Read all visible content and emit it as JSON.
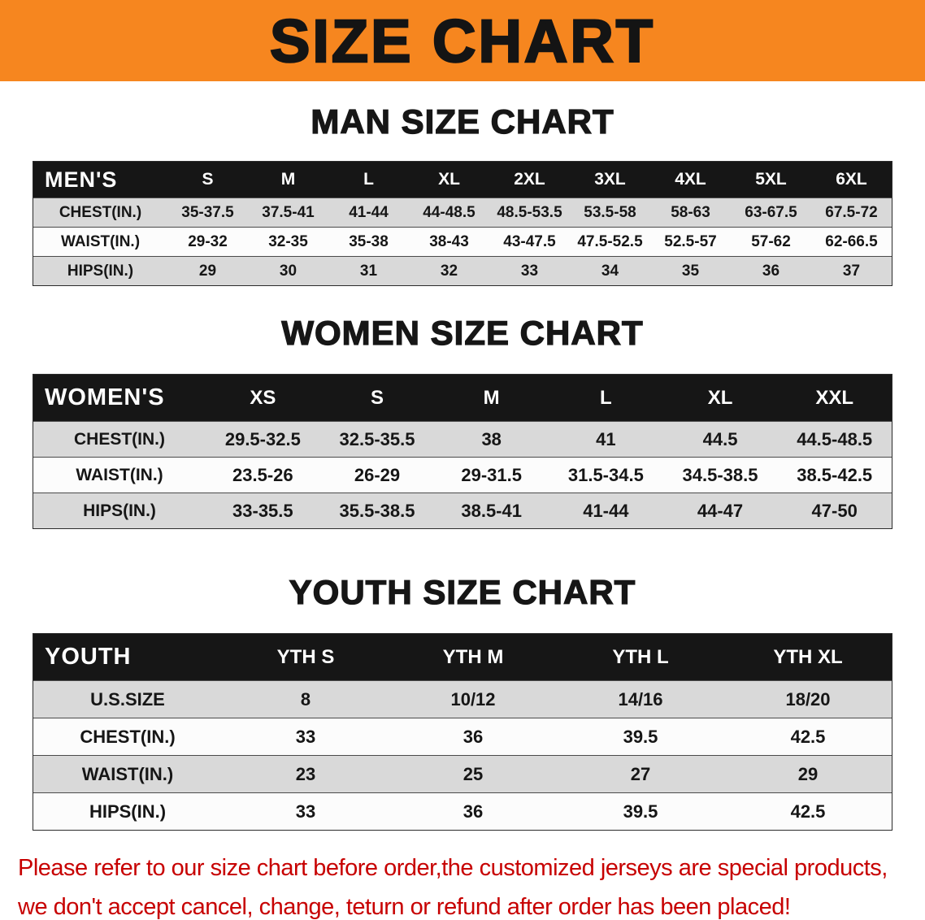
{
  "banner": {
    "title": "SIZE CHART"
  },
  "men": {
    "heading": "MAN SIZE CHART",
    "label": "MEN'S",
    "columns": [
      "S",
      "M",
      "L",
      "XL",
      "2XL",
      "3XL",
      "4XL",
      "5XL",
      "6XL"
    ],
    "rows": [
      {
        "label": "CHEST(IN.)",
        "values": [
          "35-37.5",
          "37.5-41",
          "41-44",
          "44-48.5",
          "48.5-53.5",
          "53.5-58",
          "58-63",
          "63-67.5",
          "67.5-72"
        ]
      },
      {
        "label": "WAIST(IN.)",
        "values": [
          "29-32",
          "32-35",
          "35-38",
          "38-43",
          "43-47.5",
          "47.5-52.5",
          "52.5-57",
          "57-62",
          "62-66.5"
        ]
      },
      {
        "label": "HIPS(IN.)",
        "values": [
          "29",
          "30",
          "31",
          "32",
          "33",
          "34",
          "35",
          "36",
          "37"
        ]
      }
    ]
  },
  "women": {
    "heading": "WOMEN SIZE CHART",
    "label": "WOMEN'S",
    "columns": [
      "XS",
      "S",
      "M",
      "L",
      "XL",
      "XXL"
    ],
    "rows": [
      {
        "label": "CHEST(IN.)",
        "values": [
          "29.5-32.5",
          "32.5-35.5",
          "38",
          "41",
          "44.5",
          "44.5-48.5"
        ]
      },
      {
        "label": "WAIST(IN.)",
        "values": [
          "23.5-26",
          "26-29",
          "29-31.5",
          "31.5-34.5",
          "34.5-38.5",
          "38.5-42.5"
        ]
      },
      {
        "label": "HIPS(IN.)",
        "values": [
          "33-35.5",
          "35.5-38.5",
          "38.5-41",
          "41-44",
          "44-47",
          "47-50"
        ]
      }
    ]
  },
  "youth": {
    "heading": "YOUTH SIZE CHART",
    "label": "YOUTH",
    "columns": [
      "YTH S",
      "YTH M",
      "YTH L",
      "YTH XL"
    ],
    "rows": [
      {
        "label": "U.S.SIZE",
        "values": [
          "8",
          "10/12",
          "14/16",
          "18/20"
        ]
      },
      {
        "label": "CHEST(IN.)",
        "values": [
          "33",
          "36",
          "39.5",
          "42.5"
        ]
      },
      {
        "label": "WAIST(IN.)",
        "values": [
          "23",
          "25",
          "27",
          "29"
        ]
      },
      {
        "label": "HIPS(IN.)",
        "values": [
          "33",
          "36",
          "39.5",
          "42.5"
        ]
      }
    ]
  },
  "footer": {
    "line1": "Please refer to our size chart before order,the customized jerseys are special products,",
    "line2": "we don't accept cancel, change, teturn or refund after order has been placed!"
  },
  "colors": {
    "banner_bg": "#F6861F",
    "banner_text": "#141414",
    "header_bar": "#161616",
    "row_gray": "#D9D9D9",
    "text_dark": "#161616",
    "footer_red": "#C70000"
  }
}
